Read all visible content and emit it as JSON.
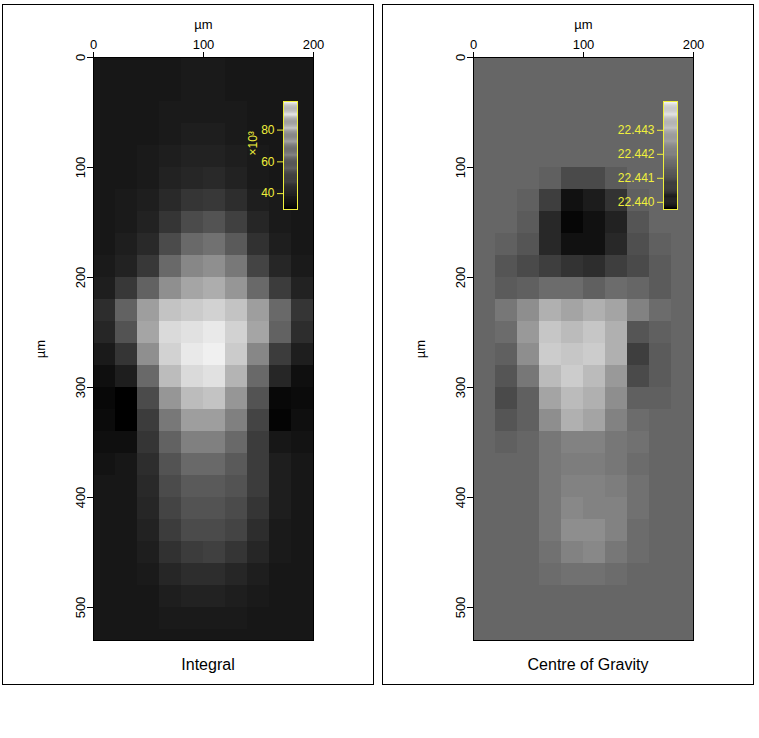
{
  "chart_data": [
    {
      "type": "heatmap",
      "title": "Integral",
      "x_label": "µm",
      "y_label": "µm",
      "xlim": [
        0,
        200
      ],
      "xticks": [
        0,
        100,
        200
      ],
      "ylim": [
        0,
        530
      ],
      "yticks": [
        0,
        100,
        200,
        300,
        400,
        500
      ],
      "x_edges": [
        0,
        20,
        40,
        60,
        80,
        100,
        120,
        140,
        160,
        180,
        200
      ],
      "y_edges": [
        0,
        20,
        40,
        60,
        80,
        100,
        120,
        140,
        160,
        180,
        200,
        220,
        240,
        260,
        280,
        300,
        320,
        340,
        360,
        380,
        400,
        420,
        440,
        460,
        480,
        500,
        520,
        530
      ],
      "values": [
        [
          36,
          36,
          36,
          36,
          37,
          37,
          36,
          36,
          36,
          36
        ],
        [
          36,
          36,
          36,
          36,
          37,
          37,
          36,
          36,
          36,
          36
        ],
        [
          36,
          36,
          36,
          37,
          37,
          37,
          37,
          36,
          36,
          36
        ],
        [
          36,
          36,
          36,
          37,
          38,
          38,
          37,
          36,
          36,
          36
        ],
        [
          36,
          36,
          37,
          38,
          39,
          39,
          38,
          37,
          36,
          36
        ],
        [
          36,
          36,
          37,
          39,
          40,
          41,
          39,
          37,
          36,
          36
        ],
        [
          36,
          37,
          38,
          41,
          44,
          45,
          42,
          38,
          37,
          36
        ],
        [
          36,
          37,
          39,
          44,
          50,
          52,
          47,
          40,
          37,
          36
        ],
        [
          36,
          38,
          41,
          50,
          58,
          60,
          54,
          43,
          38,
          36
        ],
        [
          37,
          39,
          45,
          58,
          66,
          68,
          62,
          48,
          40,
          37
        ],
        [
          38,
          45,
          56,
          68,
          74,
          76,
          70,
          58,
          46,
          39
        ],
        [
          42,
          56,
          72,
          82,
          84,
          86,
          82,
          72,
          58,
          44
        ],
        [
          40,
          52,
          74,
          88,
          90,
          92,
          86,
          74,
          56,
          42
        ],
        [
          37,
          44,
          68,
          86,
          92,
          94,
          84,
          66,
          46,
          38
        ],
        [
          34,
          38,
          58,
          80,
          88,
          90,
          78,
          58,
          40,
          34
        ],
        [
          32,
          30,
          50,
          70,
          80,
          82,
          70,
          52,
          32,
          33
        ],
        [
          33,
          30,
          46,
          62,
          72,
          72,
          64,
          48,
          31,
          34
        ],
        [
          34,
          34,
          44,
          56,
          64,
          64,
          58,
          46,
          36,
          35
        ],
        [
          35,
          36,
          42,
          52,
          58,
          58,
          54,
          46,
          38,
          36
        ],
        [
          36,
          36,
          41,
          50,
          54,
          54,
          52,
          46,
          38,
          36
        ],
        [
          36,
          36,
          40,
          48,
          52,
          52,
          50,
          44,
          38,
          36
        ],
        [
          36,
          36,
          39,
          46,
          50,
          50,
          48,
          42,
          37,
          36
        ],
        [
          36,
          36,
          38,
          43,
          46,
          47,
          44,
          40,
          37,
          36
        ],
        [
          36,
          36,
          37,
          40,
          42,
          42,
          40,
          38,
          36,
          36
        ],
        [
          36,
          36,
          36,
          38,
          39,
          39,
          38,
          37,
          36,
          36
        ],
        [
          36,
          36,
          36,
          37,
          37,
          37,
          37,
          36,
          36,
          36
        ],
        [
          36,
          36,
          36,
          36,
          36,
          36,
          36,
          36,
          36,
          36
        ]
      ],
      "colorbar": {
        "range": [
          30,
          98
        ],
        "ticks": [
          40,
          60,
          80
        ],
        "label": "×10³"
      },
      "color": "gray"
    },
    {
      "type": "heatmap",
      "title": "Centre of Gravity",
      "x_label": "µm",
      "y_label": "µm",
      "xlim": [
        0,
        200
      ],
      "xticks": [
        0,
        100,
        200
      ],
      "ylim": [
        0,
        530
      ],
      "yticks": [
        0,
        100,
        200,
        300,
        400,
        500
      ],
      "x_edges": [
        0,
        20,
        40,
        60,
        80,
        100,
        120,
        140,
        160,
        180,
        200
      ],
      "y_edges": [
        0,
        20,
        40,
        60,
        80,
        100,
        120,
        140,
        160,
        180,
        200,
        220,
        240,
        260,
        280,
        300,
        320,
        340,
        360,
        380,
        400,
        420,
        440,
        460,
        480,
        500,
        520,
        530
      ],
      "values": [
        [
          22.4415,
          22.4415,
          22.4415,
          22.4415,
          22.4415,
          22.4415,
          22.4415,
          22.4415,
          22.4415,
          22.4415
        ],
        [
          22.4415,
          22.4415,
          22.4415,
          22.4415,
          22.4415,
          22.4415,
          22.4415,
          22.4415,
          22.4415,
          22.4415
        ],
        [
          22.4415,
          22.4415,
          22.4415,
          22.4415,
          22.4415,
          22.4415,
          22.4415,
          22.4415,
          22.4415,
          22.4415
        ],
        [
          22.4415,
          22.4415,
          22.4415,
          22.4415,
          22.4415,
          22.4415,
          22.4415,
          22.4415,
          22.4415,
          22.4415
        ],
        [
          22.4415,
          22.4415,
          22.4415,
          22.4415,
          22.4415,
          22.4415,
          22.4415,
          22.4415,
          22.4415,
          22.4415
        ],
        [
          22.4415,
          22.4415,
          22.4415,
          22.4414,
          22.441,
          22.441,
          22.4413,
          22.4415,
          22.4415,
          22.4415
        ],
        [
          22.4415,
          22.4415,
          22.4414,
          22.4408,
          22.44,
          22.4402,
          22.4406,
          22.4414,
          22.4415,
          22.4415
        ],
        [
          22.4415,
          22.4415,
          22.4413,
          22.4404,
          22.4398,
          22.44,
          22.4403,
          22.4412,
          22.4415,
          22.4415
        ],
        [
          22.4415,
          22.4414,
          22.4412,
          22.4404,
          22.44,
          22.44,
          22.4404,
          22.4411,
          22.4414,
          22.4415
        ],
        [
          22.4415,
          22.4412,
          22.441,
          22.4408,
          22.4406,
          22.4405,
          22.4408,
          22.441,
          22.4413,
          22.4415
        ],
        [
          22.4415,
          22.4413,
          22.4414,
          22.4416,
          22.4416,
          22.4414,
          22.4416,
          22.4415,
          22.4413,
          22.4415
        ],
        [
          22.4415,
          22.4418,
          22.4422,
          22.4428,
          22.4426,
          22.4428,
          22.4426,
          22.442,
          22.4416,
          22.4415
        ],
        [
          22.4415,
          22.4416,
          22.4424,
          22.4432,
          22.443,
          22.4432,
          22.4428,
          22.4412,
          22.4414,
          22.4415
        ],
        [
          22.4415,
          22.4414,
          22.4422,
          22.4433,
          22.4432,
          22.4433,
          22.4428,
          22.4408,
          22.4413,
          22.4415
        ],
        [
          22.4415,
          22.4412,
          22.4418,
          22.443,
          22.4433,
          22.443,
          22.4424,
          22.441,
          22.4413,
          22.4415
        ],
        [
          22.4415,
          22.441,
          22.4414,
          22.4426,
          22.443,
          22.4428,
          22.4422,
          22.4414,
          22.4414,
          22.4415
        ],
        [
          22.4415,
          22.4412,
          22.4414,
          22.4422,
          22.4428,
          22.4426,
          22.442,
          22.4416,
          22.4415,
          22.4415
        ],
        [
          22.4415,
          22.4414,
          22.4415,
          22.4418,
          22.442,
          22.442,
          22.4418,
          22.4417,
          22.4415,
          22.4415
        ],
        [
          22.4415,
          22.4415,
          22.4415,
          22.4418,
          22.4419,
          22.4419,
          22.4418,
          22.4416,
          22.4415,
          22.4415
        ],
        [
          22.4415,
          22.4415,
          22.4415,
          22.4418,
          22.442,
          22.442,
          22.4419,
          22.4417,
          22.4415,
          22.4415
        ],
        [
          22.4415,
          22.4415,
          22.4415,
          22.4418,
          22.4421,
          22.442,
          22.442,
          22.4417,
          22.4415,
          22.4415
        ],
        [
          22.4415,
          22.4415,
          22.4415,
          22.4418,
          22.4422,
          22.4422,
          22.442,
          22.4416,
          22.4415,
          22.4415
        ],
        [
          22.4415,
          22.4415,
          22.4415,
          22.4417,
          22.442,
          22.4421,
          22.4418,
          22.4416,
          22.4415,
          22.4415
        ],
        [
          22.4415,
          22.4415,
          22.4415,
          22.4416,
          22.4417,
          22.4417,
          22.4416,
          22.4415,
          22.4415,
          22.4415
        ],
        [
          22.4415,
          22.4415,
          22.4415,
          22.4415,
          22.4415,
          22.4415,
          22.4415,
          22.4415,
          22.4415,
          22.4415
        ],
        [
          22.4415,
          22.4415,
          22.4415,
          22.4415,
          22.4415,
          22.4415,
          22.4415,
          22.4415,
          22.4415,
          22.4415
        ],
        [
          22.4415,
          22.4415,
          22.4415,
          22.4415,
          22.4415,
          22.4415,
          22.4415,
          22.4415,
          22.4415,
          22.4415
        ]
      ],
      "colorbar": {
        "range": [
          22.4397,
          22.4442
        ],
        "ticks": [
          {
            "value": 22.44,
            "label": "22.440"
          },
          {
            "value": 22.441,
            "label": "22.441"
          },
          {
            "value": 22.442,
            "label": "22.442"
          },
          {
            "value": 22.443,
            "label": "22.443"
          }
        ]
      },
      "color": "gray"
    }
  ]
}
